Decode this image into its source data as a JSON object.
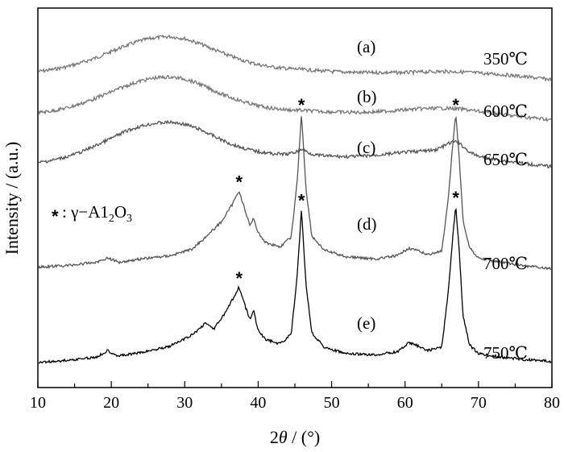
{
  "chart_data": {
    "type": "line",
    "xlabel_prefix": "2",
    "xlabel_var": "θ",
    "xlabel_suffix": " / (°)",
    "ylabel": "Intensity / (a.u.)",
    "xlim": [
      10,
      80
    ],
    "x_ticks": [
      "10",
      "20",
      "30",
      "40",
      "50",
      "60",
      "70",
      "80"
    ],
    "legend_note": {
      "star": "*",
      "prefix": ": γ−A1",
      "sub1": "2",
      "mid": "O",
      "sub2": "3"
    },
    "series": [
      {
        "letter": "(a)",
        "temp": "350℃",
        "color": "#777777",
        "x": [
          10,
          12,
          14,
          16,
          18,
          20,
          22,
          24,
          26,
          28,
          30,
          32,
          34,
          36,
          38,
          40,
          42,
          44,
          46,
          48,
          50,
          52,
          54,
          56,
          58,
          60,
          62,
          64,
          66,
          68,
          70,
          72,
          74,
          76,
          78,
          80
        ],
        "y": [
          0.1,
          0.14,
          0.2,
          0.28,
          0.38,
          0.5,
          0.62,
          0.72,
          0.78,
          0.8,
          0.76,
          0.66,
          0.54,
          0.42,
          0.32,
          0.24,
          0.19,
          0.16,
          0.14,
          0.12,
          0.1,
          0.09,
          0.08,
          0.08,
          0.08,
          0.08,
          0.09,
          0.1,
          0.1,
          0.09,
          0.07,
          0.05,
          0.03,
          0.0,
          -0.03,
          -0.06
        ]
      },
      {
        "letter": "(b)",
        "temp": "600℃",
        "color": "#777777",
        "x": [
          10,
          12,
          14,
          16,
          18,
          20,
          22,
          24,
          26,
          28,
          30,
          32,
          34,
          36,
          38,
          40,
          42,
          44,
          46,
          48,
          50,
          52,
          54,
          56,
          58,
          60,
          62,
          64,
          66,
          68,
          70,
          72,
          74,
          76,
          78,
          80
        ],
        "y": [
          0.08,
          0.12,
          0.18,
          0.27,
          0.38,
          0.5,
          0.62,
          0.72,
          0.78,
          0.8,
          0.76,
          0.66,
          0.52,
          0.4,
          0.3,
          0.22,
          0.17,
          0.14,
          0.13,
          0.11,
          0.1,
          0.09,
          0.09,
          0.1,
          0.12,
          0.14,
          0.16,
          0.17,
          0.17,
          0.15,
          0.11,
          0.07,
          0.03,
          0.0,
          -0.03,
          -0.06
        ]
      },
      {
        "letter": "(c)",
        "temp": "650℃",
        "color": "#555555",
        "x": [
          10,
          12,
          14,
          16,
          18,
          20,
          22,
          24,
          26,
          28,
          30,
          32,
          34,
          36,
          38,
          40,
          42,
          44,
          45,
          46,
          47,
          48,
          50,
          52,
          54,
          56,
          58,
          60,
          62,
          64,
          65,
          66,
          67,
          68,
          69,
          70,
          72,
          74,
          76,
          78,
          80
        ],
        "y": [
          0.05,
          0.1,
          0.17,
          0.27,
          0.4,
          0.54,
          0.68,
          0.78,
          0.84,
          0.86,
          0.82,
          0.72,
          0.58,
          0.44,
          0.34,
          0.27,
          0.23,
          0.22,
          0.26,
          0.32,
          0.24,
          0.2,
          0.18,
          0.17,
          0.18,
          0.2,
          0.23,
          0.26,
          0.28,
          0.3,
          0.36,
          0.44,
          0.48,
          0.36,
          0.24,
          0.18,
          0.12,
          0.08,
          0.04,
          0.0,
          -0.03
        ]
      },
      {
        "letter": "(d)",
        "temp": "700℃",
        "color": "#555555",
        "x": [
          10,
          14,
          18,
          19.5,
          21,
          24,
          28,
          31,
          33,
          35,
          36.5,
          37.4,
          38.3,
          38.9,
          39.4,
          39.9,
          41,
          43,
          44.5,
          45.3,
          45.9,
          46.5,
          47.3,
          49,
          52,
          56,
          59,
          60.5,
          61.5,
          63,
          65,
          65.9,
          66.5,
          66.9,
          67.3,
          67.9,
          68.8,
          70,
          73,
          76,
          80
        ],
        "y": [
          0.05,
          0.08,
          0.14,
          0.22,
          0.14,
          0.2,
          0.26,
          0.38,
          0.62,
          0.88,
          1.2,
          1.45,
          1.05,
          0.8,
          0.95,
          0.7,
          0.5,
          0.42,
          0.6,
          1.6,
          2.85,
          1.5,
          0.62,
          0.36,
          0.24,
          0.2,
          0.26,
          0.4,
          0.36,
          0.28,
          0.34,
          1.3,
          2.3,
          2.85,
          2.2,
          0.9,
          0.4,
          0.22,
          0.14,
          0.08,
          0.02
        ]
      },
      {
        "letter": "(e)",
        "temp": "750℃",
        "color": "#000000",
        "x": [
          10,
          14,
          18,
          19.5,
          21,
          24,
          28,
          31,
          32.8,
          34,
          35.5,
          36.5,
          37.4,
          38.3,
          38.9,
          39.4,
          39.9,
          41,
          43,
          44.5,
          45.3,
          45.9,
          46.5,
          47.3,
          49,
          52,
          56,
          59,
          60.5,
          61.5,
          63,
          65,
          65.9,
          66.5,
          66.9,
          67.3,
          67.9,
          68.8,
          70,
          73,
          76,
          80
        ],
        "y": [
          0.0,
          0.04,
          0.1,
          0.22,
          0.12,
          0.18,
          0.3,
          0.5,
          0.72,
          0.62,
          0.9,
          1.15,
          1.38,
          1.0,
          0.78,
          0.95,
          0.62,
          0.42,
          0.34,
          0.52,
          1.55,
          2.8,
          1.45,
          0.55,
          0.28,
          0.16,
          0.14,
          0.2,
          0.36,
          0.32,
          0.22,
          0.28,
          1.3,
          2.3,
          2.85,
          2.2,
          0.85,
          0.32,
          0.16,
          0.1,
          0.06,
          0.02
        ]
      }
    ]
  }
}
